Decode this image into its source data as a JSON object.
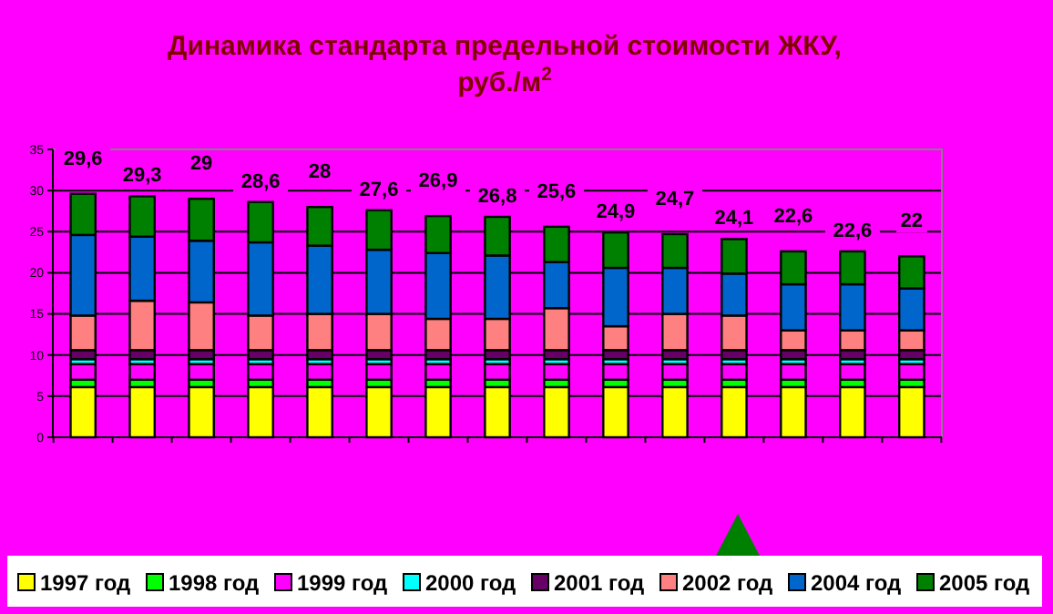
{
  "chart_data": {
    "type": "bar",
    "stacked": true,
    "title": "Динамика стандарта предельной стоимости ЖКУ, руб./м$^{2}$",
    "categories": [
      null,
      null,
      null,
      null,
      null,
      null,
      null,
      null,
      null,
      null,
      null,
      null,
      null,
      null,
      null
    ],
    "series": [
      {
        "name": "1997 год",
        "color": "#ffff00",
        "values": [
          6.1,
          6.1,
          6.1,
          6.1,
          6.1,
          6.1,
          6.1,
          6.1,
          6.1,
          6.1,
          6.1,
          6.1,
          6.1,
          6.1,
          6.1
        ]
      },
      {
        "name": "1998 год",
        "color": "#00ff00",
        "values": [
          0.9,
          0.9,
          0.9,
          0.9,
          0.9,
          0.9,
          0.9,
          0.9,
          0.9,
          0.9,
          0.9,
          0.9,
          0.9,
          0.9,
          0.9
        ]
      },
      {
        "name": "1999 год",
        "color": "#ff00ff",
        "values": [
          1.9,
          1.9,
          1.9,
          1.9,
          1.9,
          1.9,
          1.9,
          1.9,
          1.9,
          1.9,
          1.9,
          1.9,
          1.9,
          1.9,
          1.9
        ]
      },
      {
        "name": "2000 год",
        "color": "#00ffff",
        "values": [
          0.6,
          0.6,
          0.6,
          0.6,
          0.6,
          0.6,
          0.6,
          0.6,
          0.6,
          0.6,
          0.6,
          0.6,
          0.6,
          0.6,
          0.6
        ]
      },
      {
        "name": "2001 год",
        "color": "#660066",
        "values": [
          1.1,
          1.1,
          1.1,
          1.1,
          1.1,
          1.1,
          1.1,
          1.1,
          1.1,
          1.1,
          1.1,
          1.1,
          1.1,
          1.1,
          1.1
        ]
      },
      {
        "name": "2002 год",
        "color": "#ff8080",
        "values": [
          4.2,
          6.0,
          5.8,
          4.2,
          4.4,
          4.4,
          3.8,
          3.8,
          5.1,
          2.9,
          4.4,
          4.2,
          2.4,
          2.4,
          2.4
        ]
      },
      {
        "name": "2004 год",
        "color": "#0066cc",
        "values": [
          9.8,
          7.8,
          7.5,
          8.9,
          8.3,
          7.8,
          8.0,
          7.7,
          5.6,
          7.1,
          5.6,
          5.1,
          5.6,
          5.6,
          5.1
        ]
      },
      {
        "name": "2005 год",
        "color": "#008000",
        "values": [
          5.0,
          4.9,
          5.1,
          4.9,
          4.7,
          4.8,
          4.5,
          4.7,
          4.3,
          4.3,
          4.1,
          4.2,
          4.0,
          4.0,
          3.9
        ]
      }
    ],
    "totals": [
      "29,6",
      "29,3",
      "29",
      "28,6",
      "28",
      "27,6",
      "26,9",
      "26,8",
      "25,6",
      "24,9",
      "24,7",
      "24,1",
      "22,6",
      "22,6",
      "22"
    ],
    "ylim": [
      0,
      35
    ],
    "yticks": [
      0,
      5,
      10,
      15,
      20,
      25,
      30,
      35
    ],
    "grid": "y",
    "legend": "bottom"
  }
}
